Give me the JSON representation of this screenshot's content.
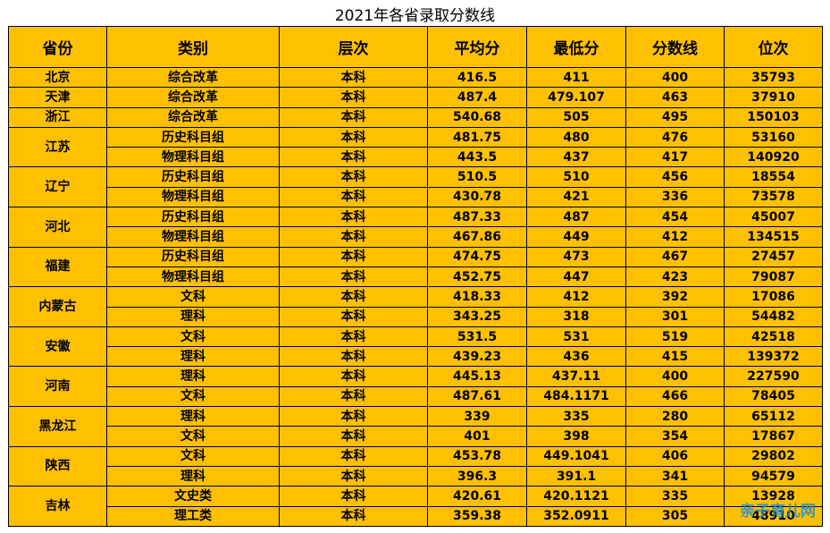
{
  "title": "2021年各省录取分数线",
  "table": {
    "header": [
      "省份",
      "类别",
      "层次",
      "平均分",
      "最低分",
      "分数线",
      "位次"
    ],
    "groups": [
      {
        "province": "北京",
        "rows": [
          [
            "综合改革",
            "本科",
            "416.5",
            "411",
            "400",
            "35793"
          ]
        ]
      },
      {
        "province": "天津",
        "rows": [
          [
            "综合改革",
            "本科",
            "487.4",
            "479.107",
            "463",
            "37910"
          ]
        ]
      },
      {
        "province": "浙江",
        "rows": [
          [
            "综合改革",
            "本科",
            "540.68",
            "505",
            "495",
            "150103"
          ]
        ]
      },
      {
        "province": "江苏",
        "rows": [
          [
            "历史科目组",
            "本科",
            "481.75",
            "480",
            "476",
            "53160"
          ],
          [
            "物理科目组",
            "本科",
            "443.5",
            "437",
            "417",
            "140920"
          ]
        ]
      },
      {
        "province": "辽宁",
        "rows": [
          [
            "历史科目组",
            "本科",
            "510.5",
            "510",
            "456",
            "18554"
          ],
          [
            "物理科目组",
            "本科",
            "430.78",
            "421",
            "336",
            "73578"
          ]
        ]
      },
      {
        "province": "河北",
        "rows": [
          [
            "历史科目组",
            "本科",
            "487.33",
            "487",
            "454",
            "45007"
          ],
          [
            "物理科目组",
            "本科",
            "467.86",
            "449",
            "412",
            "134515"
          ]
        ]
      },
      {
        "province": "福建",
        "rows": [
          [
            "历史科目组",
            "本科",
            "474.75",
            "473",
            "467",
            "27457"
          ],
          [
            "物理科目组",
            "本科",
            "452.75",
            "447",
            "423",
            "79087"
          ]
        ]
      },
      {
        "province": "内蒙古",
        "rows": [
          [
            "文科",
            "本科",
            "418.33",
            "412",
            "392",
            "17086"
          ],
          [
            "理科",
            "本科",
            "343.25",
            "318",
            "301",
            "54482"
          ]
        ]
      },
      {
        "province": "安徽",
        "rows": [
          [
            "文科",
            "本科",
            "531.5",
            "531",
            "519",
            "42518"
          ],
          [
            "理科",
            "本科",
            "439.23",
            "436",
            "415",
            "139372"
          ]
        ]
      },
      {
        "province": "河南",
        "rows": [
          [
            "理科",
            "本科",
            "445.13",
            "437.11",
            "400",
            "227590"
          ],
          [
            "文科",
            "本科",
            "487.61",
            "484.1171",
            "466",
            "78405"
          ]
        ]
      },
      {
        "province": "黑龙江",
        "rows": [
          [
            "理科",
            "本科",
            "339",
            "335",
            "280",
            "65112"
          ],
          [
            "文科",
            "本科",
            "401",
            "398",
            "354",
            "17867"
          ]
        ]
      },
      {
        "province": "陕西",
        "rows": [
          [
            "文科",
            "本科",
            "453.78",
            "449.1041",
            "406",
            "29802"
          ],
          [
            "理科",
            "本科",
            "396.3",
            "391.1",
            "341",
            "94579"
          ]
        ]
      },
      {
        "province": "吉林",
        "rows": [
          [
            "文史类",
            "本科",
            "420.61",
            "420.1121",
            "335",
            "13928"
          ],
          [
            "理工类",
            "本科",
            "359.38",
            "352.0911",
            "305",
            "48910"
          ]
        ]
      }
    ]
  },
  "watermark": "亲子育儿网"
}
